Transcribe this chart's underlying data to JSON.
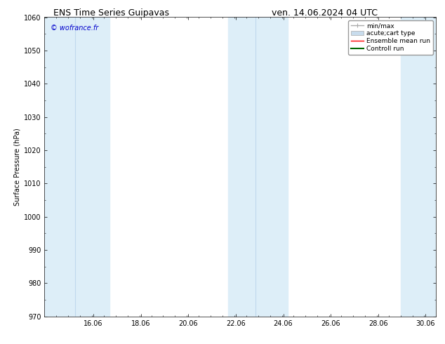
{
  "title_left": "ENS Time Series Guipavas",
  "title_right": "ven. 14.06.2024 04 UTC",
  "ylabel": "Surface Pressure (hPa)",
  "ylim": [
    970,
    1060
  ],
  "yticks": [
    970,
    980,
    990,
    1000,
    1010,
    1020,
    1030,
    1040,
    1050,
    1060
  ],
  "xlim_start": 14.0,
  "xlim_end": 30.5,
  "xtick_labels": [
    "16.06",
    "18.06",
    "20.06",
    "22.06",
    "24.06",
    "26.06",
    "28.06",
    "30.06"
  ],
  "xtick_positions": [
    16.06,
    18.06,
    20.06,
    22.06,
    24.06,
    26.06,
    28.06,
    30.06
  ],
  "watermark": "© wofrance.fr",
  "watermark_color": "#0000cc",
  "shaded_bands": [
    {
      "x_start": 14.0,
      "x_end": 16.75,
      "divider": 15.3
    },
    {
      "x_start": 21.75,
      "x_end": 24.25,
      "divider": 22.9
    },
    {
      "x_start": 29.0,
      "x_end": 30.5,
      "divider": null
    }
  ],
  "shaded_color": "#ddeef8",
  "divider_color": "#c0d8ee",
  "background_color": "#ffffff",
  "legend_entries": [
    {
      "label": "min/max",
      "color": "#aaaaaa",
      "lw": 1.0,
      "type": "errorbar"
    },
    {
      "label": "acute;cart type",
      "color": "#c8dced",
      "lw": 5,
      "type": "band"
    },
    {
      "label": "Ensemble mean run",
      "color": "#ff0000",
      "lw": 1.0,
      "type": "line"
    },
    {
      "label": "Controll run",
      "color": "#006600",
      "lw": 1.5,
      "type": "line"
    }
  ],
  "title_fontsize": 9,
  "axis_fontsize": 7,
  "tick_fontsize": 7,
  "legend_fontsize": 6.5
}
